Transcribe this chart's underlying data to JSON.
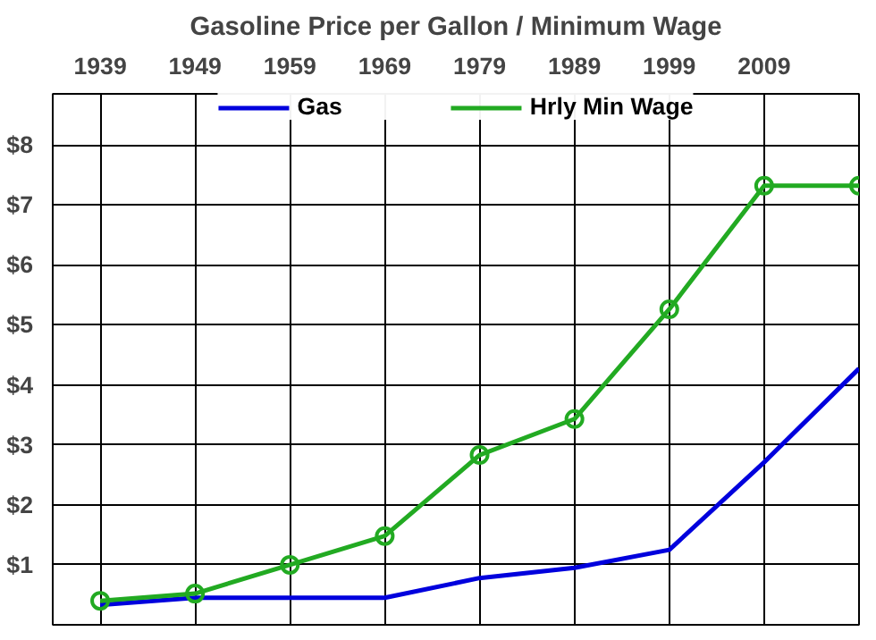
{
  "chart_data": {
    "type": "line",
    "title": "Gasoline Price per Gallon / Minimum Wage",
    "categories": [
      "1939",
      "1949",
      "1959",
      "1969",
      "1979",
      "1989",
      "1999",
      "2009",
      null
    ],
    "series": [
      {
        "name": "Gas",
        "color": "#0000dd",
        "marker": "none",
        "values": [
          0.33,
          0.45,
          0.45,
          0.45,
          0.78,
          0.95,
          1.25,
          2.71,
          4.27
        ]
      },
      {
        "name": "Hrly Min Wage",
        "color": "#22aa22",
        "marker": "circle",
        "values": [
          0.4,
          0.52,
          1.0,
          1.48,
          2.83,
          3.43,
          5.26,
          7.32,
          7.32
        ]
      }
    ],
    "ylim": [
      0,
      8.85
    ],
    "yticks": [
      {
        "value": 1,
        "label": "$1"
      },
      {
        "value": 2,
        "label": "$2"
      },
      {
        "value": 3,
        "label": "$3"
      },
      {
        "value": 4,
        "label": "$4"
      },
      {
        "value": 5,
        "label": "$5"
      },
      {
        "value": 6,
        "label": "$6"
      },
      {
        "value": 7,
        "label": "$7"
      },
      {
        "value": 8,
        "label": "$8"
      }
    ],
    "grid": true,
    "legend": "top"
  }
}
